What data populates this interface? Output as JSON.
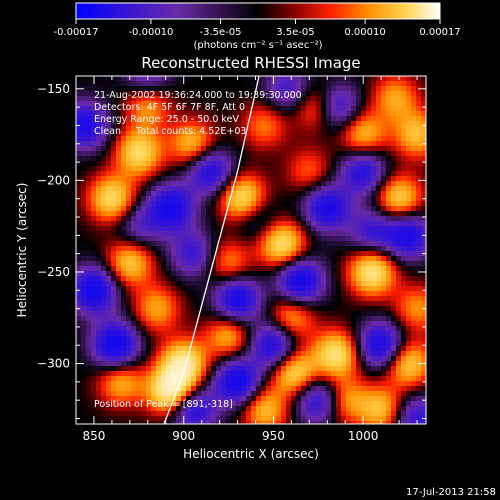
{
  "footer_timestamp": "17-Jul-2013 21:58",
  "colorbar": {
    "tick_labels": [
      "-0.00017",
      "-0.00010",
      "-3.5e-05",
      "3.5e-05",
      "0.00010",
      "0.00017"
    ],
    "tick_values": [
      -0.00017,
      -0.0001,
      -3.5e-05,
      3.5e-05,
      0.0001,
      0.00017
    ],
    "range": [
      -0.00017,
      0.00017
    ],
    "unit_label": "(photons cm⁻² s⁻¹ asec⁻²)",
    "colors": [
      "#0000ff",
      "#6a2aa8",
      "#000000",
      "#8a0000",
      "#ff2000",
      "#ff8c00",
      "#ffd24a",
      "#ffffff"
    ]
  },
  "chart_data": {
    "type": "heatmap",
    "title": "Reconstructed RHESSI Image",
    "xlabel": "Heliocentric X (arcsec)",
    "ylabel": "Heliocentric Y (arcsec)",
    "xlim": [
      840,
      1035
    ],
    "ylim": [
      -333,
      -143
    ],
    "xticks": [
      850,
      900,
      950,
      1000
    ],
    "yticks": [
      -150,
      -200,
      -250,
      -300
    ],
    "annotations": [
      "21-Aug-2002 19:36:24.000 to 19:39:30.000",
      "Detectors: 4F 5F 6F 7F 8F, Att 0",
      "Energy Range: 25.0 - 50.0 keV",
      "Clean     Total counts: 4.52E+03"
    ],
    "peak_label": "Position of Peak = [891,-318]",
    "peak": [
      891,
      -318
    ],
    "limb_arc": [
      [
        889,
        -333
      ],
      [
        900,
        -305
      ],
      [
        915,
        -250
      ],
      [
        930,
        -195
      ],
      [
        942,
        -143
      ]
    ],
    "sources": [
      {
        "x": 893,
        "y": -315,
        "v": 1.0
      },
      {
        "x": 900,
        "y": -300,
        "v": 0.85
      },
      {
        "x": 962,
        "y": -305,
        "v": 0.75
      },
      {
        "x": 985,
        "y": -295,
        "v": 0.8
      },
      {
        "x": 1005,
        "y": -250,
        "v": 0.85
      },
      {
        "x": 1025,
        "y": -300,
        "v": 0.7
      },
      {
        "x": 1010,
        "y": -325,
        "v": 0.6
      },
      {
        "x": 955,
        "y": -235,
        "v": 0.8
      },
      {
        "x": 933,
        "y": -210,
        "v": 0.85
      },
      {
        "x": 905,
        "y": -180,
        "v": 0.6
      },
      {
        "x": 875,
        "y": -185,
        "v": 0.75
      },
      {
        "x": 860,
        "y": -210,
        "v": 0.75
      },
      {
        "x": 870,
        "y": -245,
        "v": 0.65
      },
      {
        "x": 1020,
        "y": -210,
        "v": 0.7
      },
      {
        "x": 1030,
        "y": -175,
        "v": 0.6
      },
      {
        "x": 1000,
        "y": -175,
        "v": 0.6
      },
      {
        "x": 975,
        "y": -160,
        "v": 0.55
      },
      {
        "x": 960,
        "y": -275,
        "v": 0.55
      },
      {
        "x": 925,
        "y": -285,
        "v": 0.55
      },
      {
        "x": 945,
        "y": -325,
        "v": 0.6
      },
      {
        "x": 865,
        "y": -310,
        "v": 0.55
      },
      {
        "x": 880,
        "y": -160,
        "v": 0.45
      },
      {
        "x": 1018,
        "y": -155,
        "v": 0.5
      },
      {
        "x": 990,
        "y": -320,
        "v": 0.5
      },
      {
        "x": 925,
        "y": -245,
        "v": 0.45
      },
      {
        "x": 945,
        "y": -170,
        "v": 0.4
      },
      {
        "x": 1030,
        "y": -270,
        "v": 0.45
      },
      {
        "x": 885,
        "y": -270,
        "v": 0.5
      },
      {
        "x": 970,
        "y": -195,
        "v": 0.35
      },
      {
        "x": 850,
        "y": -260,
        "v": -0.9
      },
      {
        "x": 862,
        "y": -290,
        "v": -0.95
      },
      {
        "x": 845,
        "y": -170,
        "v": -0.8
      },
      {
        "x": 893,
        "y": -215,
        "v": -0.85
      },
      {
        "x": 915,
        "y": -195,
        "v": -0.75
      },
      {
        "x": 930,
        "y": -265,
        "v": -0.85
      },
      {
        "x": 965,
        "y": -255,
        "v": -0.9
      },
      {
        "x": 980,
        "y": -215,
        "v": -0.8
      },
      {
        "x": 985,
        "y": -160,
        "v": -0.7
      },
      {
        "x": 930,
        "y": -310,
        "v": -0.9
      },
      {
        "x": 905,
        "y": -325,
        "v": -0.75
      },
      {
        "x": 1010,
        "y": -290,
        "v": -0.85
      },
      {
        "x": 1025,
        "y": -230,
        "v": -0.8
      },
      {
        "x": 1000,
        "y": -195,
        "v": -0.7
      },
      {
        "x": 950,
        "y": -290,
        "v": -0.8
      },
      {
        "x": 975,
        "y": -320,
        "v": -0.7
      },
      {
        "x": 1030,
        "y": -330,
        "v": -0.6
      },
      {
        "x": 905,
        "y": -240,
        "v": -0.55
      },
      {
        "x": 880,
        "y": -140,
        "v": -0.5
      },
      {
        "x": 1005,
        "y": -228,
        "v": -0.55
      },
      {
        "x": 958,
        "y": -150,
        "v": -0.5
      },
      {
        "x": 940,
        "y": -220,
        "v": -0.35
      },
      {
        "x": 875,
        "y": -225,
        "v": -0.4
      }
    ]
  }
}
